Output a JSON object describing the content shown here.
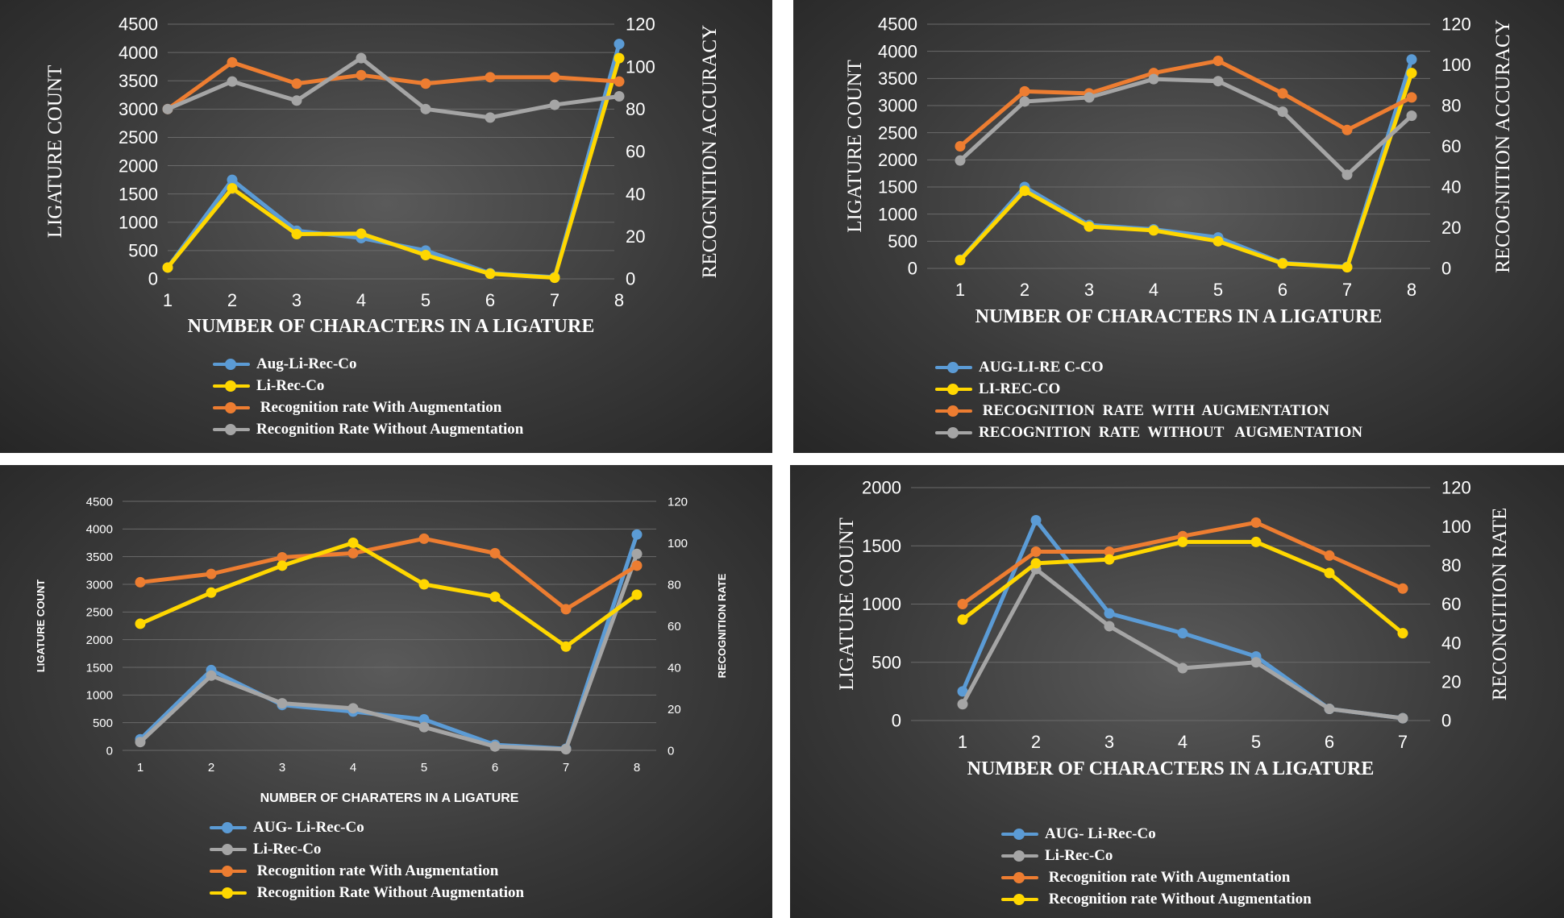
{
  "colors": {
    "blue": "#5b9bd5",
    "yellow": "#ffd700",
    "orange": "#ed7d31",
    "gray": "#a5a5a5",
    "text": "#ffffff",
    "grid": "#6a6a6a"
  },
  "chart_data": [
    {
      "type": "line",
      "title": "",
      "xlabel": "NUMBER OF CHARACTERS  IN A LIGATURE",
      "ylabel": "LIGATURE COUNT",
      "y2label": "RECOGNITION ACCURACY",
      "categories": [
        "1",
        "2",
        "3",
        "4",
        "5",
        "6",
        "7",
        "8"
      ],
      "ylim": [
        0,
        4500
      ],
      "y_ticks": [
        "0",
        "500",
        "1000",
        "1500",
        "2000",
        "2500",
        "3000",
        "3500",
        "4000",
        "4500"
      ],
      "y2lim": [
        0,
        120
      ],
      "y2_ticks": [
        "0",
        "20",
        "40",
        "60",
        "80",
        "100",
        "120"
      ],
      "series": [
        {
          "name": "Aug-Li-Rec-Co",
          "color": "#5b9bd5",
          "axis": "left",
          "values": [
            200,
            1750,
            850,
            720,
            500,
            100,
            30,
            4150
          ]
        },
        {
          "name": "Li-Rec-Co",
          "color": "#ffd700",
          "axis": "left",
          "values": [
            200,
            1600,
            790,
            800,
            420,
            90,
            20,
            3900
          ]
        },
        {
          "name": " Recognition rate With Augmentation",
          "color": "#ed7d31",
          "axis": "right",
          "values": [
            80,
            102,
            92,
            96,
            92,
            95,
            95,
            93
          ]
        },
        {
          "name": "Recognition Rate Without Augmentation",
          "color": "#a5a5a5",
          "axis": "right",
          "values": [
            80,
            93,
            84,
            104,
            80,
            76,
            82,
            86
          ]
        }
      ]
    },
    {
      "type": "line",
      "title": "",
      "xlabel": "NUMBER OF CHARACTERS  IN A LIGATURE",
      "ylabel": "LIGATURE  COUNT",
      "y2label": "RECOGNITION ACCURACY",
      "categories": [
        "1",
        "2",
        "3",
        "4",
        "5",
        "6",
        "7",
        "8"
      ],
      "ylim": [
        0,
        4500
      ],
      "y_ticks": [
        "0",
        "500",
        "1000",
        "1500",
        "2000",
        "2500",
        "3000",
        "3500",
        "4000",
        "4500"
      ],
      "y2lim": [
        0,
        120
      ],
      "y2_ticks": [
        "0",
        "20",
        "40",
        "60",
        "80",
        "100",
        "120"
      ],
      "series": [
        {
          "name": "AUG-LI-RE C-CO",
          "color": "#5b9bd5",
          "axis": "left",
          "values": [
            160,
            1500,
            800,
            720,
            570,
            100,
            30,
            3850
          ]
        },
        {
          "name": "LI-REC-CO",
          "color": "#ffd700",
          "axis": "left",
          "values": [
            150,
            1430,
            770,
            700,
            500,
            90,
            20,
            3600
          ]
        },
        {
          "name": " RECOGNITION  RATE  WITH  AUGMENTATION",
          "color": "#ed7d31",
          "axis": "right",
          "values": [
            60,
            87,
            86,
            96,
            102,
            86,
            68,
            84
          ]
        },
        {
          "name": "RECOGNITION  RATE  WITHOUT   AUGMENTATION",
          "color": "#a5a5a5",
          "axis": "right",
          "values": [
            53,
            82,
            84,
            93,
            92,
            77,
            46,
            75
          ]
        }
      ]
    },
    {
      "type": "line",
      "title": "",
      "xlabel": "NUMBER OF CHARATERS IN A LIGATURE",
      "ylabel": "LIGATURE COUNT",
      "y2label": "RECOGNITION RATE",
      "categories": [
        "1",
        "2",
        "3",
        "4",
        "5",
        "6",
        "7",
        "8"
      ],
      "ylim": [
        0,
        4500
      ],
      "y_ticks": [
        "0",
        "500",
        "1000",
        "1500",
        "2000",
        "2500",
        "3000",
        "3500",
        "4000",
        "4500"
      ],
      "y2lim": [
        0,
        120
      ],
      "y2_ticks": [
        "0",
        "20",
        "40",
        "60",
        "80",
        "100",
        "120"
      ],
      "series": [
        {
          "name": "AUG- Li-Rec-Co",
          "color": "#5b9bd5",
          "axis": "left",
          "values": [
            200,
            1450,
            820,
            700,
            560,
            100,
            30,
            3900
          ]
        },
        {
          "name": "Li-Rec-Co",
          "color": "#a5a5a5",
          "axis": "left",
          "values": [
            150,
            1350,
            850,
            760,
            420,
            70,
            20,
            3550
          ]
        },
        {
          "name": " Recognition rate With Augmentation",
          "color": "#ed7d31",
          "axis": "right",
          "values": [
            81,
            85,
            93,
            95,
            102,
            95,
            68,
            89
          ]
        },
        {
          "name": " Recognition Rate Without Augmentation",
          "color": "#ffd700",
          "axis": "right",
          "values": [
            61,
            76,
            89,
            100,
            80,
            74,
            50,
            75
          ]
        }
      ]
    },
    {
      "type": "line",
      "title": "",
      "xlabel": "NUMBER OF CHARACTERS  IN A LIGATURE",
      "ylabel": "LIGATURE  COUNT",
      "y2label": "RECONGITION  RATE",
      "categories": [
        "1",
        "2",
        "3",
        "4",
        "5",
        "6",
        "7"
      ],
      "ylim": [
        0,
        2000
      ],
      "y_ticks": [
        "0",
        "500",
        "1000",
        "1500",
        "2000"
      ],
      "y2lim": [
        0,
        120
      ],
      "y2_ticks": [
        "0",
        "20",
        "40",
        "60",
        "80",
        "100",
        "120"
      ],
      "series": [
        {
          "name": "AUG- Li-Rec-Co",
          "color": "#5b9bd5",
          "axis": "left",
          "values": [
            250,
            1720,
            920,
            750,
            550,
            100,
            20
          ]
        },
        {
          "name": "Li-Rec-Co",
          "color": "#a5a5a5",
          "axis": "left",
          "values": [
            140,
            1300,
            810,
            450,
            500,
            100,
            20
          ]
        },
        {
          "name": " Recognition rate With Augmentation",
          "color": "#ed7d31",
          "axis": "right",
          "values": [
            60,
            87,
            87,
            95,
            102,
            85,
            68
          ]
        },
        {
          "name": " Recognition rate Without Augmentation",
          "color": "#ffd700",
          "axis": "right",
          "values": [
            52,
            81,
            83,
            92,
            92,
            76,
            45
          ]
        }
      ]
    }
  ]
}
